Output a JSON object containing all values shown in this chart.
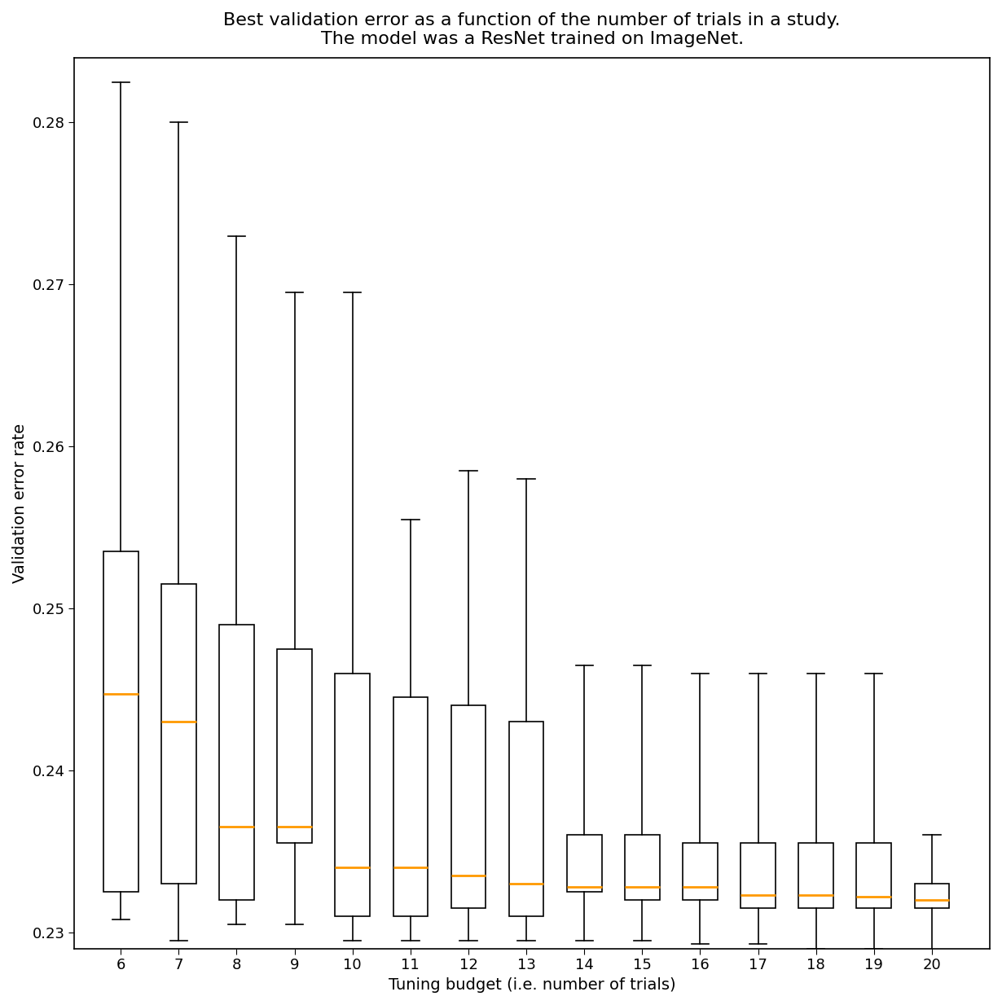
{
  "title": "Best validation error as a function of the number of trials in a study.\nThe model was a ResNet trained on ImageNet.",
  "xlabel": "Tuning budget (i.e. number of trials)",
  "ylabel": "Validation error rate",
  "title_fontsize": 16,
  "label_fontsize": 14,
  "tick_fontsize": 13,
  "background_color": "#ffffff",
  "box_facecolor": "white",
  "box_edgecolor": "black",
  "median_color": "#ff9900",
  "whisker_color": "black",
  "cap_color": "black",
  "ylim": [
    0.229,
    0.284
  ],
  "yticks": [
    0.23,
    0.24,
    0.25,
    0.26,
    0.27,
    0.28
  ],
  "ytick_labels": [
    "0.23",
    "0.24",
    "0.25",
    "0.26",
    "0.27",
    "0.28"
  ],
  "boxes": [
    {
      "x": 6,
      "q1": 0.2325,
      "median": 0.2447,
      "q3": 0.2535,
      "whislo": 0.2308,
      "whishi": 0.2825
    },
    {
      "x": 7,
      "q1": 0.233,
      "median": 0.243,
      "q3": 0.2515,
      "whislo": 0.2295,
      "whishi": 0.28
    },
    {
      "x": 8,
      "q1": 0.232,
      "median": 0.2365,
      "q3": 0.249,
      "whislo": 0.2305,
      "whishi": 0.273
    },
    {
      "x": 9,
      "q1": 0.2355,
      "median": 0.2365,
      "q3": 0.2475,
      "whislo": 0.2305,
      "whishi": 0.2695
    },
    {
      "x": 10,
      "q1": 0.231,
      "median": 0.234,
      "q3": 0.246,
      "whislo": 0.2295,
      "whishi": 0.2695
    },
    {
      "x": 11,
      "q1": 0.231,
      "median": 0.234,
      "q3": 0.2445,
      "whislo": 0.2295,
      "whishi": 0.2555
    },
    {
      "x": 12,
      "q1": 0.2315,
      "median": 0.2335,
      "q3": 0.244,
      "whislo": 0.2295,
      "whishi": 0.2585
    },
    {
      "x": 13,
      "q1": 0.231,
      "median": 0.233,
      "q3": 0.243,
      "whislo": 0.2295,
      "whishi": 0.258
    },
    {
      "x": 14,
      "q1": 0.2325,
      "median": 0.2328,
      "q3": 0.236,
      "whislo": 0.2295,
      "whishi": 0.2465
    },
    {
      "x": 15,
      "q1": 0.232,
      "median": 0.2328,
      "q3": 0.236,
      "whislo": 0.2295,
      "whishi": 0.2465
    },
    {
      "x": 16,
      "q1": 0.232,
      "median": 0.2328,
      "q3": 0.2355,
      "whislo": 0.2293,
      "whishi": 0.246
    },
    {
      "x": 17,
      "q1": 0.2315,
      "median": 0.2323,
      "q3": 0.2355,
      "whislo": 0.2293,
      "whishi": 0.246
    },
    {
      "x": 18,
      "q1": 0.2315,
      "median": 0.2323,
      "q3": 0.2355,
      "whislo": 0.229,
      "whishi": 0.246
    },
    {
      "x": 19,
      "q1": 0.2315,
      "median": 0.2322,
      "q3": 0.2355,
      "whislo": 0.229,
      "whishi": 0.246
    },
    {
      "x": 20,
      "q1": 0.2315,
      "median": 0.232,
      "q3": 0.233,
      "whislo": 0.2285,
      "whishi": 0.236
    }
  ]
}
